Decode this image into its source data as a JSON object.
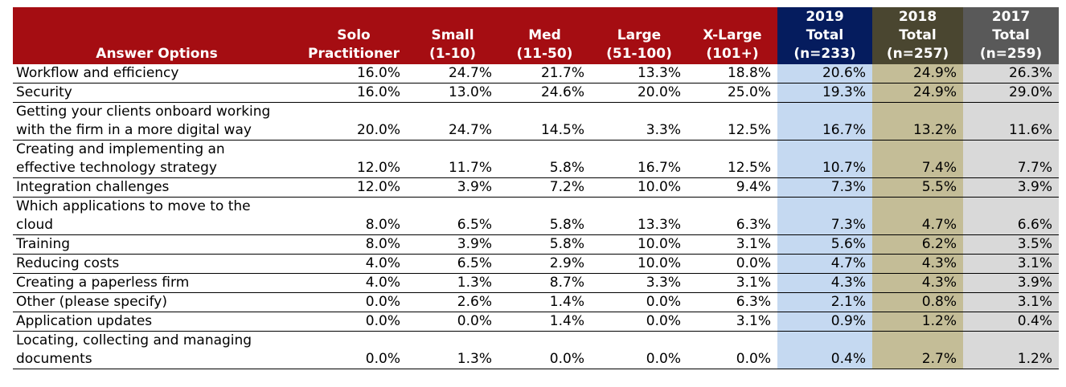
{
  "chart_data": {
    "type": "table",
    "columns": [
      {
        "key": "option",
        "lines": [
          "Answer Options"
        ]
      },
      {
        "key": "solo",
        "lines": [
          "Solo",
          "Practitioner"
        ]
      },
      {
        "key": "small",
        "lines": [
          "Small",
          "(1-10)"
        ]
      },
      {
        "key": "med",
        "lines": [
          "Med",
          "(11-50)"
        ]
      },
      {
        "key": "large",
        "lines": [
          "Large",
          "(51-100)"
        ]
      },
      {
        "key": "xlarge",
        "lines": [
          "X-Large",
          "(101+)"
        ]
      },
      {
        "key": "t2019",
        "lines": [
          "2019",
          "Total",
          "(n=233)"
        ]
      },
      {
        "key": "t2018",
        "lines": [
          "2018",
          "Total",
          "(n=257)"
        ]
      },
      {
        "key": "t2017",
        "lines": [
          "2017",
          "Total",
          "(n=259)"
        ]
      }
    ],
    "rows": [
      {
        "lines": [
          "Workflow and efficiency"
        ],
        "values": [
          "16.0%",
          "24.7%",
          "21.7%",
          "13.3%",
          "18.8%",
          "20.6%",
          "24.9%",
          "26.3%"
        ]
      },
      {
        "lines": [
          "Security"
        ],
        "values": [
          "16.0%",
          "13.0%",
          "24.6%",
          "20.0%",
          "25.0%",
          "19.3%",
          "24.9%",
          "29.0%"
        ]
      },
      {
        "lines": [
          "Getting your clients onboard working",
          "with the firm in a more digital way"
        ],
        "values": [
          "20.0%",
          "24.7%",
          "14.5%",
          "3.3%",
          "12.5%",
          "16.7%",
          "13.2%",
          "11.6%"
        ]
      },
      {
        "lines": [
          "Creating and implementing an",
          "effective technology strategy"
        ],
        "values": [
          "12.0%",
          "11.7%",
          "5.8%",
          "16.7%",
          "12.5%",
          "10.7%",
          "7.4%",
          "7.7%"
        ]
      },
      {
        "lines": [
          "Integration challenges"
        ],
        "values": [
          "12.0%",
          "3.9%",
          "7.2%",
          "10.0%",
          "9.4%",
          "7.3%",
          "5.5%",
          "3.9%"
        ]
      },
      {
        "lines": [
          "Which applications to move to the",
          "cloud"
        ],
        "values": [
          "8.0%",
          "6.5%",
          "5.8%",
          "13.3%",
          "6.3%",
          "7.3%",
          "4.7%",
          "6.6%"
        ]
      },
      {
        "lines": [
          "Training"
        ],
        "values": [
          "8.0%",
          "3.9%",
          "5.8%",
          "10.0%",
          "3.1%",
          "5.6%",
          "6.2%",
          "3.5%"
        ]
      },
      {
        "lines": [
          "Reducing costs"
        ],
        "values": [
          "4.0%",
          "6.5%",
          "2.9%",
          "10.0%",
          "0.0%",
          "4.7%",
          "4.3%",
          "3.1%"
        ]
      },
      {
        "lines": [
          "Creating a paperless firm"
        ],
        "values": [
          "4.0%",
          "1.3%",
          "8.7%",
          "3.3%",
          "3.1%",
          "4.3%",
          "4.3%",
          "3.9%"
        ]
      },
      {
        "lines": [
          "Other (please specify)"
        ],
        "values": [
          "0.0%",
          "2.6%",
          "1.4%",
          "0.0%",
          "6.3%",
          "2.1%",
          "0.8%",
          "3.1%"
        ]
      },
      {
        "lines": [
          "Application updates"
        ],
        "values": [
          "0.0%",
          "0.0%",
          "1.4%",
          "0.0%",
          "3.1%",
          "0.9%",
          "1.2%",
          "0.4%"
        ]
      },
      {
        "lines": [
          "Locating, collecting and managing",
          "documents"
        ],
        "values": [
          "0.0%",
          "1.3%",
          "0.0%",
          "0.0%",
          "0.0%",
          "0.4%",
          "2.7%",
          "1.2%"
        ]
      }
    ],
    "colors": {
      "header_main": "#a50d12",
      "header_2019": "#051c5e",
      "header_2018": "#4a4630",
      "header_2017": "#595959",
      "col_2019": "#c5d9f1",
      "col_2018": "#c4bd97",
      "col_2017": "#d9d9d9"
    }
  }
}
